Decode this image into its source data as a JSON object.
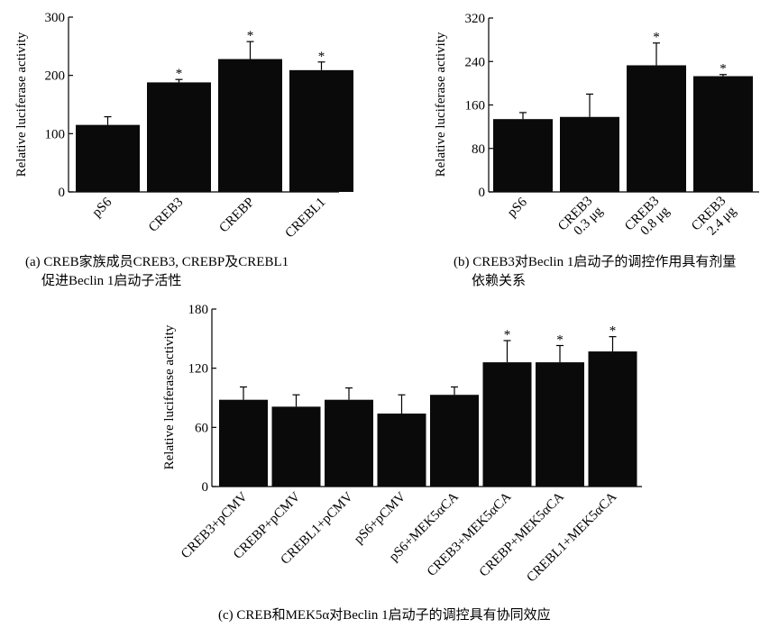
{
  "chart_data": [
    {
      "type": "bar",
      "ylabel": "Relative luciferase activity",
      "ylim": [
        0,
        300
      ],
      "yticks": [
        0,
        100,
        200,
        300
      ],
      "categories": [
        "pS6",
        "CREB3",
        "CREBP",
        "CREBL1"
      ],
      "values": [
        115,
        188,
        228,
        209
      ],
      "errors": [
        14,
        5,
        30,
        14
      ],
      "significant": [
        "",
        "*",
        "*",
        "*"
      ],
      "caption": [
        "(a) CREB家族成员CREB3, CREBP及CREBL1",
        "促进Beclin 1启动子活性"
      ]
    },
    {
      "type": "bar",
      "ylabel": "Relative luciferase activity",
      "ylim": [
        0,
        320
      ],
      "yticks": [
        0,
        80,
        160,
        240,
        320
      ],
      "categories": [
        "pS6",
        "CREB3\n0.3 μg",
        "CREB3\n0.8 μg",
        "CREB3\n2.4 μg"
      ],
      "values": [
        134,
        138,
        233,
        213
      ],
      "errors": [
        12,
        42,
        41,
        3
      ],
      "significant": [
        "",
        "",
        "*",
        "*"
      ],
      "caption": [
        "(b) CREB3对Beclin 1启动子的调控作用具有剂量",
        "依赖关系"
      ]
    },
    {
      "type": "bar",
      "ylabel": "Relative luciferase activity",
      "ylim": [
        0,
        180
      ],
      "yticks": [
        0,
        60,
        120,
        180
      ],
      "categories": [
        "CREB3+pCMV",
        "CREBP+pCMV",
        "CREBL1+pCMV",
        "pS6+pCMV",
        "pS6+MEK5αCA",
        "CREB3+MEK5αCA",
        "CREBP+MEK5αCA",
        "CREBL1+MEK5αCA"
      ],
      "values": [
        88,
        81,
        88,
        74,
        93,
        126,
        126,
        137
      ],
      "errors": [
        13,
        12,
        12,
        19,
        8,
        22,
        17,
        15
      ],
      "significant": [
        "",
        "",
        "",
        "",
        "",
        "*",
        "*",
        "*"
      ],
      "caption": [
        "(c) CREB和MEK5α对Beclin 1启动子的调控具有协同效应"
      ]
    }
  ]
}
